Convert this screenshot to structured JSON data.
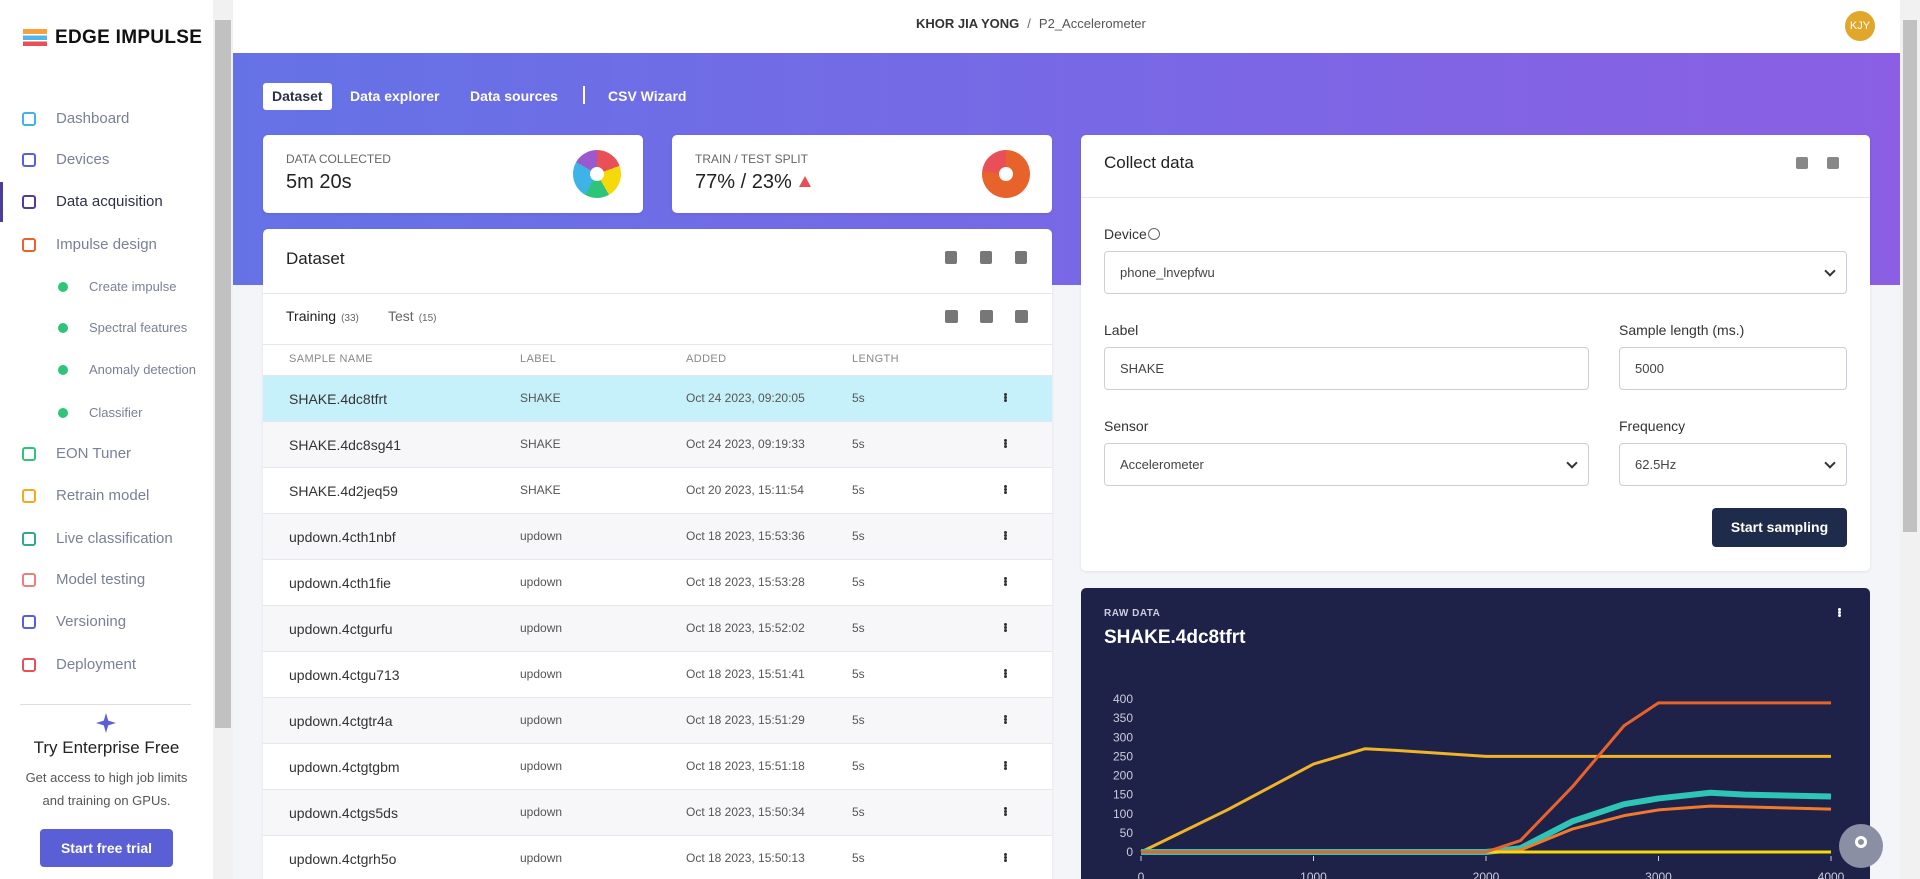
{
  "sidebar": {
    "logo": "EDGE IMPULSE",
    "nav": [
      "Dashboard",
      "Devices",
      "Data acquisition",
      "Impulse design",
      "Create impulse",
      "Spectral features",
      "Anomaly detection",
      "Classifier",
      "EON Tuner",
      "Retrain model",
      "Live classification",
      "Model testing",
      "Versioning",
      "Deployment"
    ],
    "promo": {
      "title": "Try Enterprise Free",
      "text_lines": [
        "Get access to high job limits",
        "and training on GPUs."
      ],
      "button": "Start free trial"
    }
  },
  "header": {
    "user": "KHOR JIA YONG",
    "separator": "/",
    "project": "P2_Accelerometer",
    "avatar": "KJY"
  },
  "tabs": [
    "Dataset",
    "Data explorer",
    "Data sources",
    "CSV Wizard"
  ],
  "stats": [
    {
      "label": "DATA COLLECTED",
      "value": "5m 20s"
    },
    {
      "label": "TRAIN / TEST SPLIT",
      "value": "77% / 23%"
    }
  ],
  "dataset": {
    "title": "Dataset",
    "tabs": [
      {
        "name": "Training",
        "count": "(33)"
      },
      {
        "name": "Test",
        "count": "(15)"
      }
    ],
    "columns": [
      "SAMPLE NAME",
      "LABEL",
      "ADDED",
      "LENGTH"
    ],
    "rows": [
      [
        "SHAKE.4dc8tfrt",
        "SHAKE",
        "Oct 24 2023, 09:20:05",
        "5s"
      ],
      [
        "SHAKE.4dc8sg41",
        "SHAKE",
        "Oct 24 2023, 09:19:33",
        "5s"
      ],
      [
        "SHAKE.4d2jeq59",
        "SHAKE",
        "Oct 20 2023, 15:11:54",
        "5s"
      ],
      [
        "updown.4cth1nbf",
        "updown",
        "Oct 18 2023, 15:53:36",
        "5s"
      ],
      [
        "updown.4cth1fie",
        "updown",
        "Oct 18 2023, 15:53:28",
        "5s"
      ],
      [
        "updown.4ctgurfu",
        "updown",
        "Oct 18 2023, 15:52:02",
        "5s"
      ],
      [
        "updown.4ctgu713",
        "updown",
        "Oct 18 2023, 15:51:41",
        "5s"
      ],
      [
        "updown.4ctgtr4a",
        "updown",
        "Oct 18 2023, 15:51:29",
        "5s"
      ],
      [
        "updown.4ctgtgbm",
        "updown",
        "Oct 18 2023, 15:51:18",
        "5s"
      ],
      [
        "updown.4ctgs5ds",
        "updown",
        "Oct 18 2023, 15:50:34",
        "5s"
      ],
      [
        "updown.4ctgrh5o",
        "updown",
        "Oct 18 2023, 15:50:13",
        "5s"
      ]
    ]
  },
  "collect": {
    "title": "Collect data",
    "device_label": "Device",
    "device": "phone_lnvepfwu",
    "label_label": "Label",
    "label": "SHAKE",
    "length_label": "Sample length (ms.)",
    "length": "5000",
    "sensor_label": "Sensor",
    "sensor": "Accelerometer",
    "frequency_label": "Frequency",
    "frequency": "62.5Hz",
    "button": "Start sampling"
  },
  "raw_data": {
    "label": "RAW DATA",
    "title": "SHAKE.4dc8tfrt",
    "chart": {
      "type": "line",
      "x": [
        0,
        500,
        1000,
        1300,
        1500,
        2000,
        2200,
        2500,
        2800,
        3000,
        3300,
        3500,
        4000
      ],
      "series": [
        {
          "color": "#f0b429",
          "values": [
            0,
            110,
            230,
            270,
            265,
            250,
            250,
            250,
            250,
            250,
            250,
            250,
            250
          ]
        },
        {
          "color": "#2ec4b6",
          "values": [
            0,
            0,
            0,
            0,
            0,
            0,
            10,
            80,
            125,
            140,
            155,
            150,
            145
          ]
        },
        {
          "color": "#ef7a2e",
          "values": [
            0,
            0,
            0,
            0,
            0,
            0,
            5,
            60,
            95,
            110,
            120,
            118,
            112
          ]
        },
        {
          "color": "#f5d90a",
          "values": [
            0,
            0,
            0,
            0,
            0,
            0,
            0,
            0,
            0,
            0,
            0,
            0,
            0
          ]
        },
        {
          "color": "#e8632b",
          "values": [
            0,
            0,
            0,
            0,
            0,
            0,
            30,
            170,
            330,
            390,
            390,
            390,
            390
          ]
        }
      ],
      "xlim": [
        0,
        4000
      ],
      "ylim": [
        0,
        400
      ],
      "xticks": [
        0,
        1000,
        2000,
        3000,
        4000
      ],
      "yticks": [
        0,
        50,
        100,
        150,
        200,
        250,
        300,
        350,
        400
      ]
    }
  }
}
